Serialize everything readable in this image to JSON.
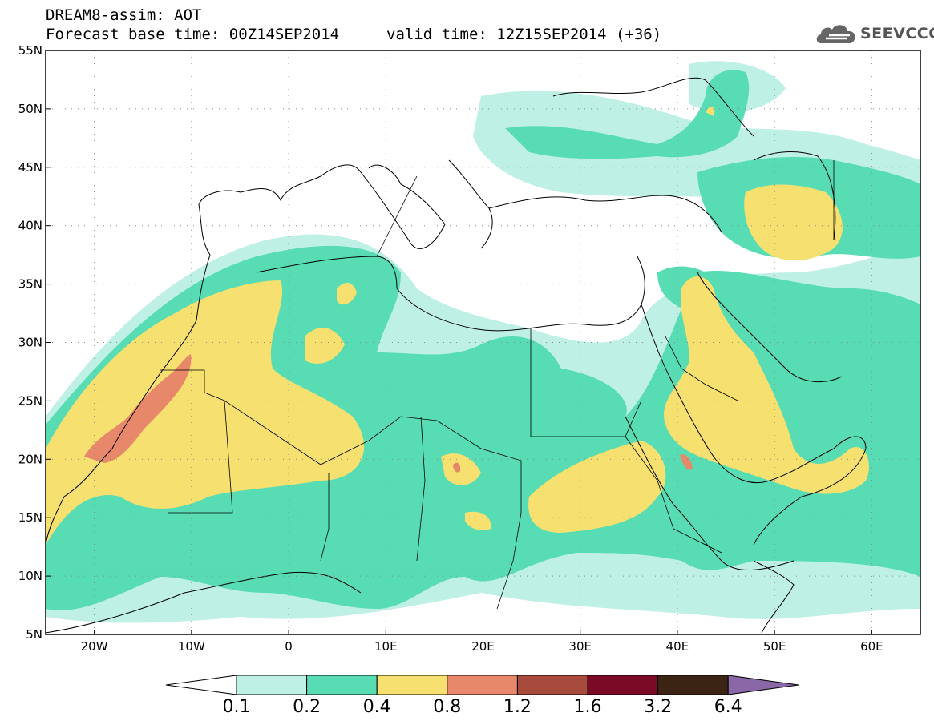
{
  "title": {
    "line1": "DREAM8-assim: AOT",
    "base_time": "Forecast base time: 00Z14SEP2014",
    "valid_time": "valid time: 12Z15SEP2014 (+36)"
  },
  "logo": {
    "text": "SEEVCCC",
    "icon": "cloud-icon"
  },
  "map": {
    "lon_range": [
      -25,
      65
    ],
    "lat_range": [
      5,
      55
    ],
    "grid": "dotted",
    "lon_ticks": [
      "20W",
      "10W",
      "0",
      "10E",
      "20E",
      "30E",
      "40E",
      "50E",
      "60E"
    ],
    "lat_ticks": [
      "55N",
      "50N",
      "45N",
      "40N",
      "35N",
      "30N",
      "25N",
      "20N",
      "15N",
      "10N",
      "5N"
    ]
  },
  "colorbar": {
    "labels": [
      "0.1",
      "0.2",
      "0.4",
      "0.8",
      "1.2",
      "1.6",
      "3.2",
      "6.4"
    ],
    "colors": [
      "#ffffff",
      "#bff0e6",
      "#58dcb4",
      "#f5e070",
      "#e8886a",
      "#a84a3c",
      "#7a0a26",
      "#3c2414",
      "#8a68a8"
    ]
  }
}
